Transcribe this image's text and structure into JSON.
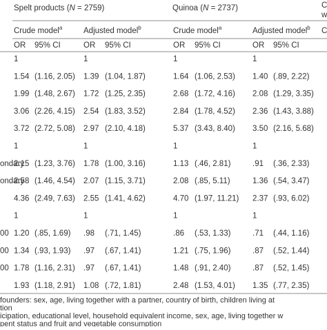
{
  "header": {
    "groups": [
      {
        "prefix": "Spelt products (",
        "n_symbol": "N",
        "suffix": " = 2759)"
      },
      {
        "prefix": "Quinoa (",
        "n_symbol": "N",
        "suffix": " = 2737)"
      }
    ],
    "models": [
      {
        "label": "Crude model",
        "note": "a"
      },
      {
        "label": "Adjusted model",
        "note": "b"
      },
      {
        "label": "Crude model",
        "note": "a"
      },
      {
        "label": "Adjusted model",
        "note": "b"
      }
    ],
    "columns": [
      "OR",
      "95% CI",
      "OR",
      "95% CI",
      "OR",
      "95% CI",
      "OR",
      "95% CI"
    ],
    "right_edge": [
      "C",
      "w",
      "C"
    ]
  },
  "table": {
    "rows": [
      {
        "label": null,
        "cells": [
          "1",
          null,
          "1",
          null,
          "1",
          null,
          "1",
          null
        ]
      },
      {
        "label": null,
        "cells": [
          "1.54",
          "(1.16, 2.05)",
          "1.39",
          "(1.04, 1.87)",
          "1.64",
          "(1.06, 2.53)",
          "1.40",
          "(.89, 2.22)"
        ]
      },
      {
        "label": null,
        "cells": [
          "1.99",
          "(1.48, 2.67)",
          "1.72",
          "(1.25, 2.35)",
          "2.68",
          "(1.72, 4.16)",
          "2.08",
          "(1.29, 3.35)"
        ]
      },
      {
        "label": null,
        "cells": [
          "3.06",
          "(2.26, 4.15)",
          "2.54",
          "(1.83, 3.52)",
          "2.84",
          "(1.78, 4.52)",
          "2.36",
          "(1.43, 3.88)"
        ]
      },
      {
        "label": null,
        "cells": [
          "3.72",
          "(2.72, 5.08)",
          "2.97",
          "(2.10, 4.18)",
          "5.37",
          "(3.43, 8.40)",
          "3.50",
          "(2.16, 5.68)"
        ]
      },
      {
        "label": null,
        "cells": [
          "1",
          null,
          "1",
          null,
          "1",
          null,
          "1",
          null
        ]
      },
      {
        "label": "ondary",
        "cells": [
          "2.15",
          "(1.23, 3.76)",
          "1.78",
          "(1.00, 3.16)",
          "1.13",
          "(.46, 2.81)",
          ".91",
          "(.36, 2.33)"
        ]
      },
      {
        "label": "ondary",
        "cells": [
          "2.58",
          "(1.46, 4.54)",
          "2.07",
          "(1.15, 3.71)",
          "2.08",
          "(.85, 5.11)",
          "1.36",
          "(.54, 3.47)"
        ]
      },
      {
        "label": null,
        "cells": [
          "4.36",
          "(2.49, 7.63)",
          "2.55",
          "(1.41, 4.62)",
          "4.70",
          "(1.97, 11.21)",
          "2.37",
          "(.93, 6.02)"
        ]
      },
      {
        "label": null,
        "cells": [
          "1",
          null,
          "1",
          null,
          "1",
          null,
          "1",
          null
        ]
      },
      {
        "label": "00",
        "cells": [
          "1.20",
          "(.85, 1.69)",
          ".98",
          "(.71, 1.45)",
          ".86",
          "(.53, 1.33)",
          ".71",
          "(.44, 1.16)"
        ]
      },
      {
        "label": "00",
        "cells": [
          "1.34",
          "(.93, 1.93)",
          ".97",
          "(.67, 1.41)",
          "1.21",
          "(.75, 1.96)",
          ".87",
          "(.52, 1.44)"
        ]
      },
      {
        "label": "00",
        "cells": [
          "1.78",
          "(1.16, 2.31)",
          ".97",
          "(.67, 1.41)",
          "1.48",
          "(.91, 2.40)",
          ".87",
          "(.52, 1.45)"
        ]
      },
      {
        "label": null,
        "cells": [
          "1.93",
          "(1.18, 2.91)",
          "1.08",
          "(.72, 1.81)",
          "2.48",
          "(1.53, 4.01)",
          "1.35",
          "(.77, 2.35)"
        ]
      }
    ]
  },
  "footnotes": [
    "founders: sex, age, living together with a partner, country of birth, children living at",
    "tion",
    "icipation, educational level, household equivalent income, sex, age, living together w",
    "pent status and fruit and vegetable consumption"
  ]
}
